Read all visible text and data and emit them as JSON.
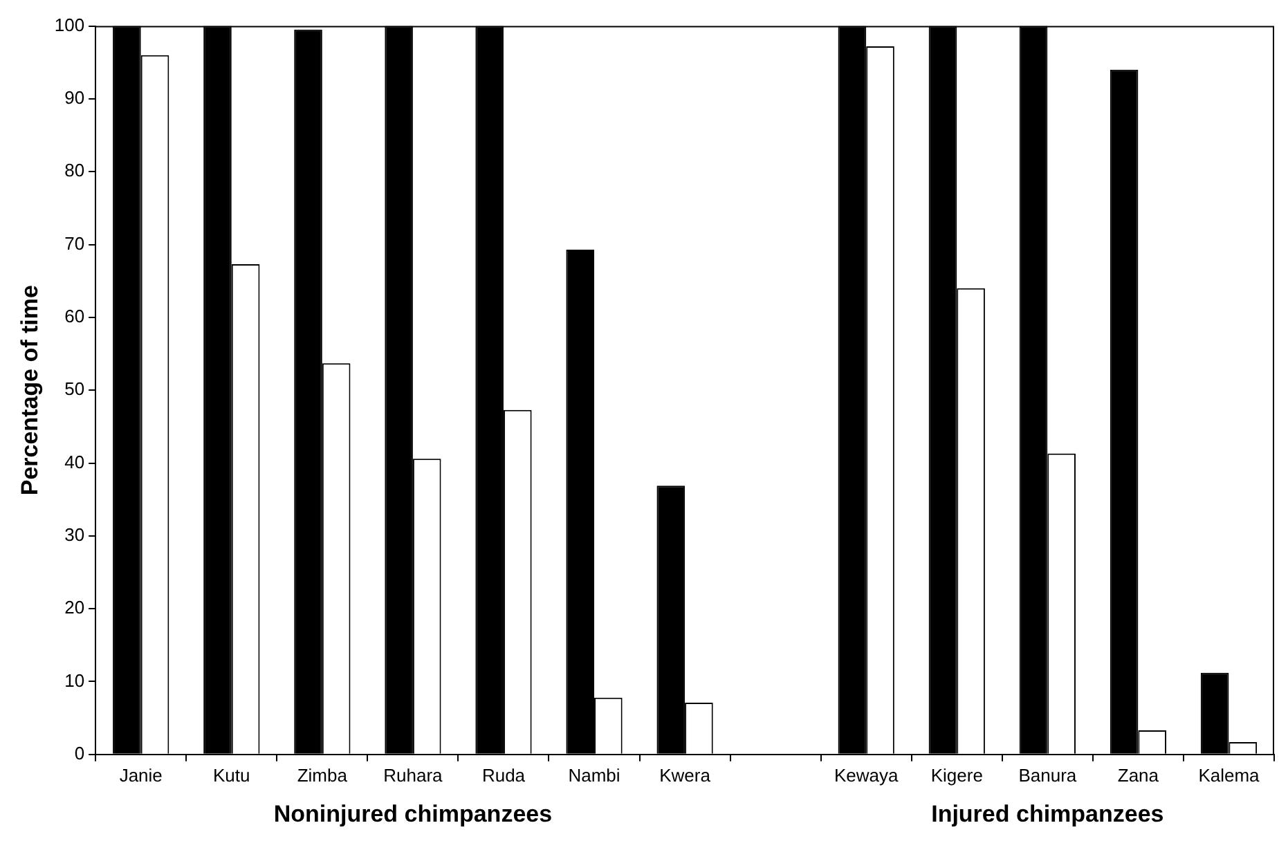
{
  "chart_data": {
    "type": "bar",
    "ylabel": "Percentage of time",
    "categories": [
      "Janie",
      "Kutu",
      "Zimba",
      "Ruhara",
      "Ruda",
      "Nambi",
      "Kwera",
      null,
      "Kewaya",
      "Kigere",
      "Banura",
      "Zana",
      "Kalema"
    ],
    "series": [
      {
        "color": "#000000",
        "values": [
          100,
          100,
          99.5,
          100,
          100,
          69.3,
          36.9,
          null,
          100,
          100,
          100,
          94,
          11.2
        ]
      },
      {
        "color": "#ffffff",
        "values": [
          96,
          67.3,
          53.7,
          40.6,
          47.3,
          7.8,
          7.1,
          null,
          97.2,
          64,
          41.3,
          3.3,
          1.7
        ]
      }
    ],
    "ylim": [
      0,
      100
    ],
    "yticks": [
      0,
      10,
      20,
      30,
      40,
      50,
      60,
      70,
      80,
      90,
      100
    ],
    "grid": false,
    "legend": false,
    "annotations": [
      "Noninjured chimpanzees",
      "Injured chimpanzees"
    ]
  }
}
